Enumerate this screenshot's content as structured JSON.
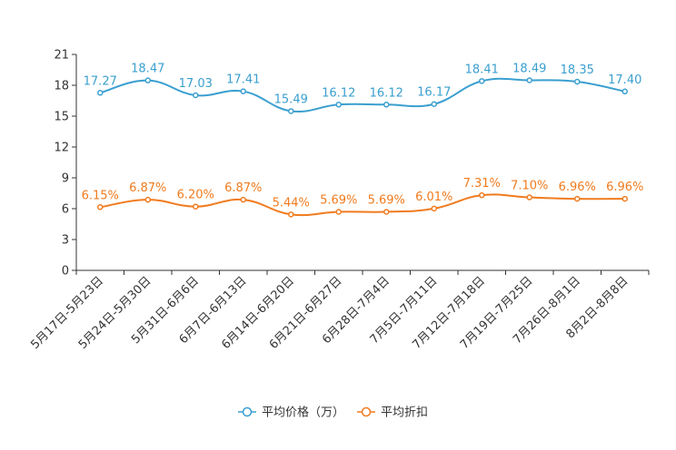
{
  "chart_data": {
    "type": "line",
    "title": "",
    "xlabel": "",
    "ylabel": "",
    "ylim": [
      0,
      21
    ],
    "yticks": [
      0,
      3,
      6,
      9,
      12,
      15,
      18,
      21
    ],
    "categories": [
      "5月17日-5月23日",
      "5月24日-5月30日",
      "5月31日-6月6日",
      "6月7日-6月13日",
      "6月14日-6月20日",
      "6月21日-6月27日",
      "6月28日-7月4日",
      "7月5日-7月11日",
      "7月12日-7月18日",
      "7月19日-7月25日",
      "7月26日-8月1日",
      "8月2日-8月8日"
    ],
    "series": [
      {
        "name": "平均价格（万）",
        "color": "#3a9fcf",
        "values": [
          17.27,
          18.47,
          17.03,
          17.41,
          15.49,
          16.12,
          16.12,
          16.17,
          18.41,
          18.49,
          18.35,
          17.4
        ],
        "labels": [
          "17.27",
          "18.47",
          "17.03",
          "17.41",
          "15.49",
          "16.12",
          "16.12",
          "16.17",
          "18.41",
          "18.49",
          "18.35",
          "17.40"
        ]
      },
      {
        "name": "平均折扣",
        "color": "#f07b1e",
        "values": [
          6.15,
          6.87,
          6.2,
          6.87,
          5.44,
          5.69,
          5.69,
          6.01,
          7.31,
          7.1,
          6.96,
          6.96
        ],
        "labels": [
          "6.15%",
          "6.87%",
          "6.20%",
          "6.87%",
          "5.44%",
          "5.69%",
          "5.69%",
          "6.01%",
          "7.31%",
          "7.10%",
          "6.96%",
          "6.96%"
        ]
      }
    ],
    "legend": "bottom-center",
    "grid": false
  }
}
